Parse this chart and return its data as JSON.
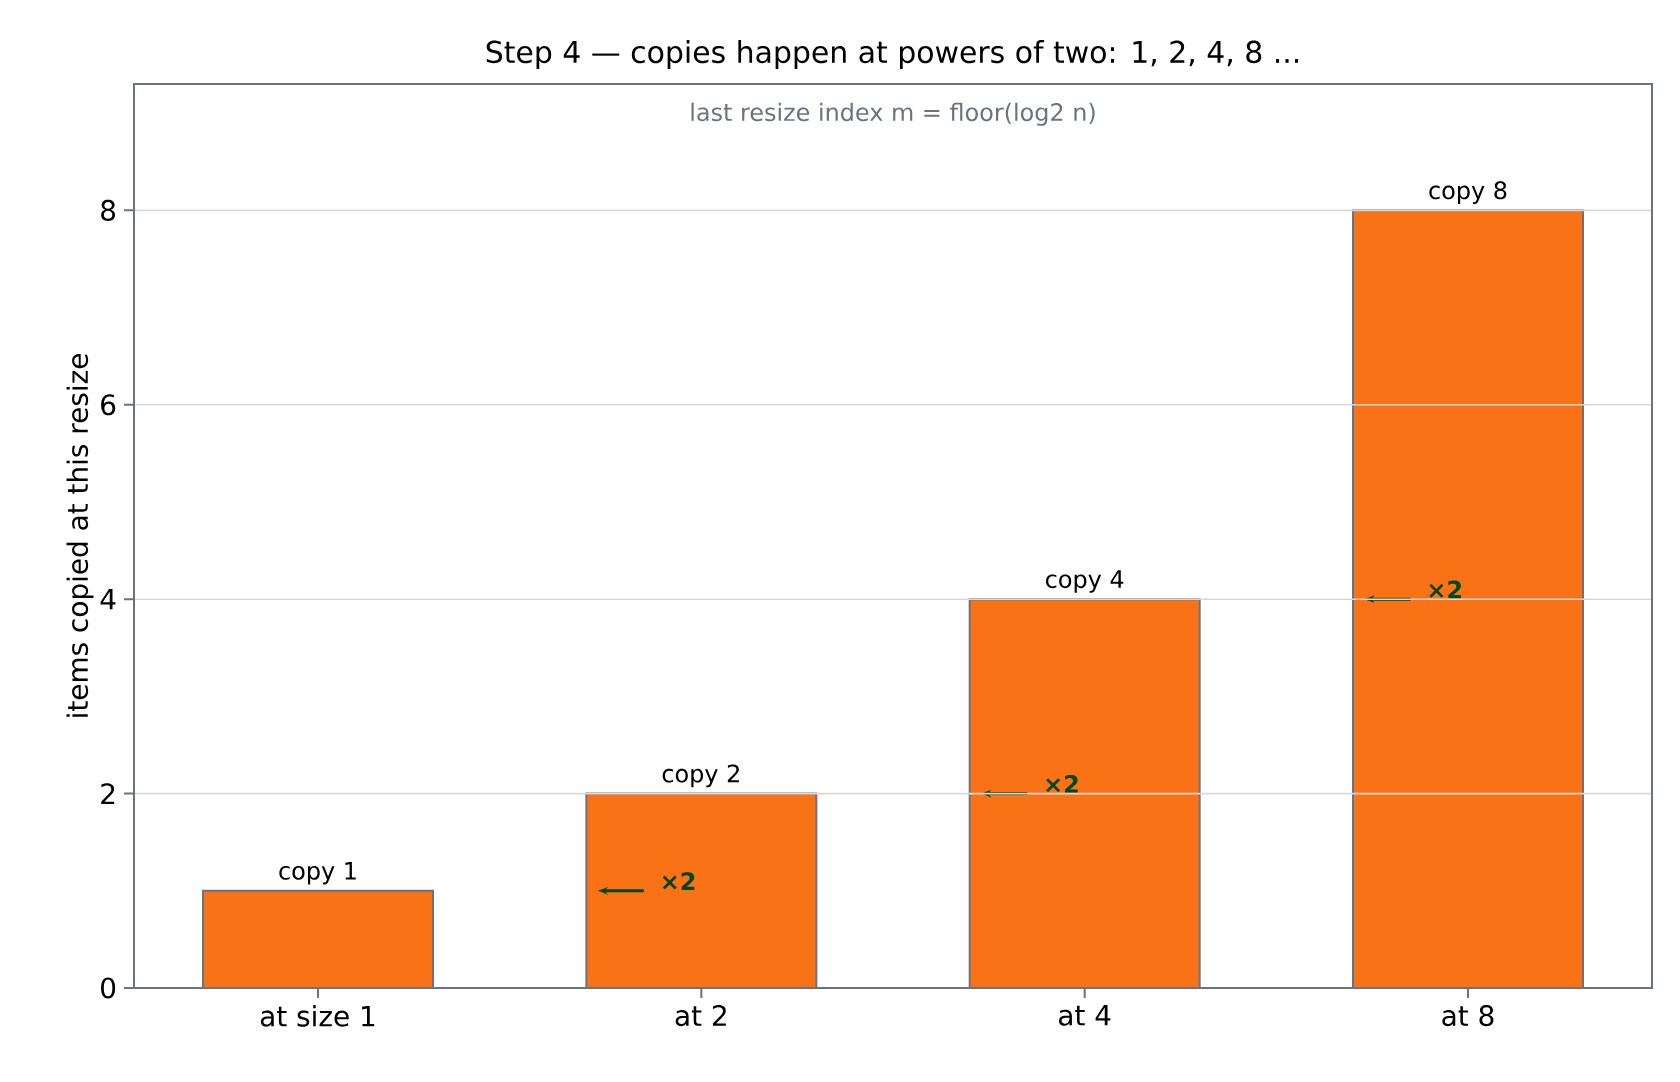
{
  "chart_data": {
    "type": "bar",
    "title": "Step 4 — copies happen at powers of two: 1, 2, 4, 8 ...",
    "ylabel": "items copied at this resize",
    "categories": [
      "at size 1",
      "at 2",
      "at 4",
      "at 8"
    ],
    "values": [
      1,
      2,
      4,
      8
    ],
    "color": "#f97316",
    "value_labels": [
      "copy 1",
      "copy 2",
      "copy 4",
      "copy 8"
    ],
    "ylim": [
      0,
      9.3
    ],
    "yticks": [
      0,
      2,
      4,
      6,
      8
    ],
    "grid": "y",
    "annotations": [
      "last resize index m = floor(log2 n)",
      "×2",
      "×2",
      "×2"
    ]
  }
}
